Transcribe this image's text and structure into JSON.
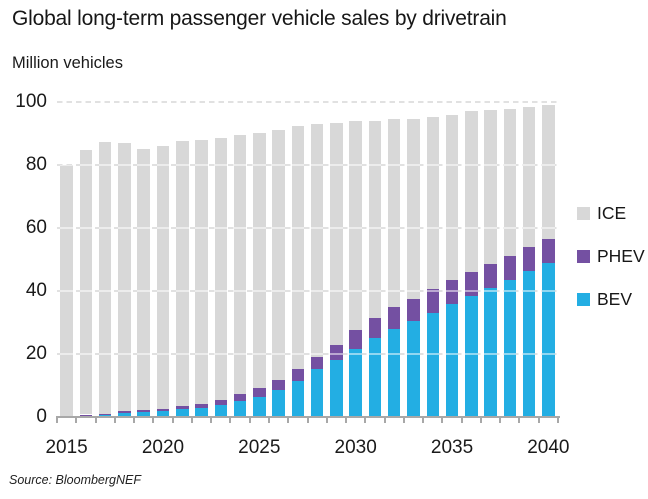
{
  "header": {
    "title": "Global long-term passenger vehicle sales by drivetrain",
    "units_label": "Million vehicles"
  },
  "source": {
    "text": "Source: BloombergNEF"
  },
  "legend": {
    "position": "right",
    "items": [
      {
        "label": "ICE",
        "color": "#d8d8d8"
      },
      {
        "label": "PHEV",
        "color": "#7450a2"
      },
      {
        "label": "BEV",
        "color": "#23aee3"
      }
    ]
  },
  "chart_data": {
    "type": "bar",
    "stacked": true,
    "title": "Global long-term passenger vehicle sales by drivetrain",
    "xlabel": "",
    "ylabel": "Million vehicles",
    "x": [
      2015,
      2016,
      2017,
      2018,
      2019,
      2020,
      2021,
      2022,
      2023,
      2024,
      2025,
      2026,
      2027,
      2028,
      2029,
      2030,
      2031,
      2032,
      2033,
      2034,
      2035,
      2036,
      2037,
      2038,
      2039,
      2040
    ],
    "x_tick_labels": [
      "2015",
      "2020",
      "2025",
      "2030",
      "2035",
      "2040"
    ],
    "ylim": [
      0,
      100
    ],
    "yticks": [
      0,
      20,
      40,
      60,
      80,
      100
    ],
    "grid": "dashed-horizontal",
    "legend_position": "right",
    "series": [
      {
        "name": "BEV",
        "color": "#23aee3",
        "values": [
          0.2,
          0.3,
          0.7,
          1.2,
          1.5,
          1.8,
          2.4,
          2.9,
          3.7,
          5.1,
          6.5,
          8.7,
          11.3,
          15.2,
          18.0,
          21.5,
          25.0,
          28.0,
          30.5,
          33.0,
          36.0,
          38.5,
          41.0,
          43.5,
          46.5,
          49.0
        ]
      },
      {
        "name": "PHEV",
        "color": "#7450a2",
        "values": [
          0.2,
          0.5,
          0.3,
          0.6,
          0.7,
          0.8,
          1.0,
          1.2,
          1.6,
          2.3,
          2.7,
          3.1,
          3.9,
          3.8,
          5.0,
          6.0,
          6.5,
          7.0,
          7.0,
          7.5,
          7.5,
          7.5,
          7.5,
          7.5,
          7.5,
          7.5
        ]
      },
      {
        "name": "ICE",
        "color": "#d8d8d8",
        "values": [
          79.6,
          84.0,
          86.4,
          85.1,
          82.8,
          83.5,
          84.2,
          84.0,
          83.4,
          82.1,
          80.9,
          79.3,
          77.2,
          74.0,
          70.4,
          66.5,
          62.5,
          59.5,
          57.0,
          54.7,
          52.4,
          51.1,
          48.9,
          46.7,
          44.4,
          42.5
        ]
      }
    ]
  }
}
